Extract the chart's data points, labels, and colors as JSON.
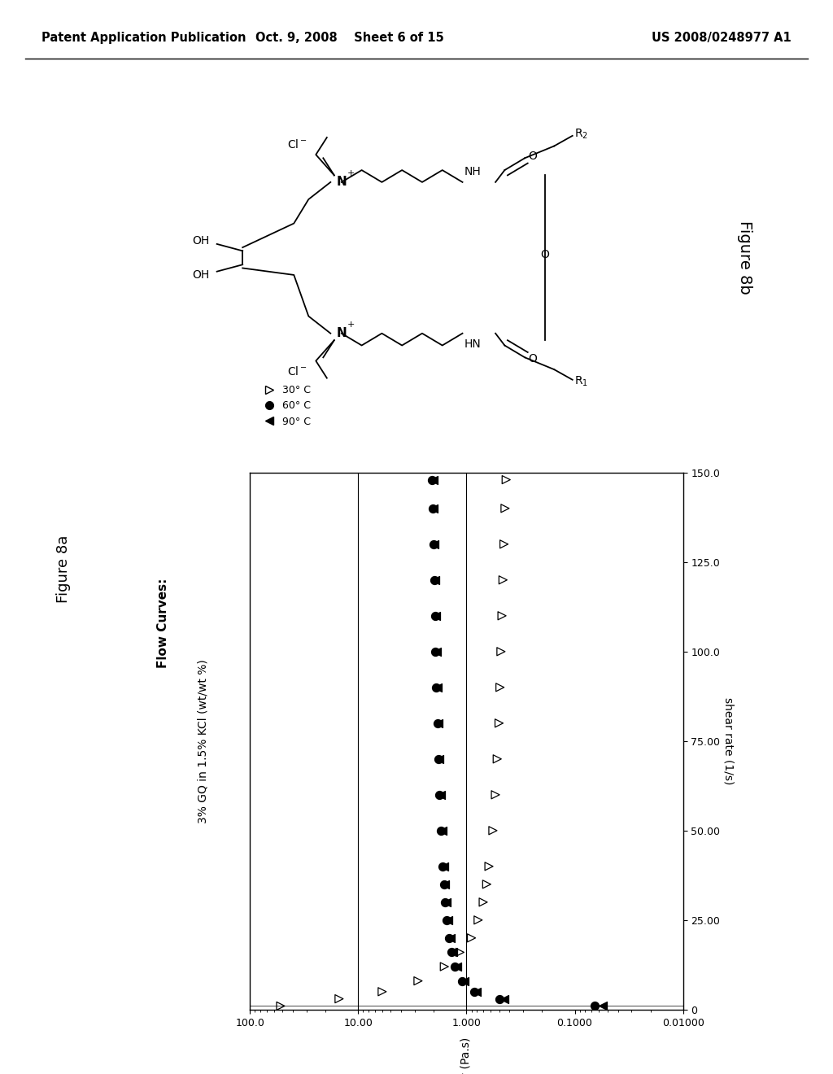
{
  "header_left": "Patent Application Publication",
  "header_center": "Oct. 9, 2008    Sheet 6 of 15",
  "header_right": "US 2008/0248977 A1",
  "figure_label_8b": "Figure 8b",
  "figure_label_8a": "Figure 8a",
  "plot_title_line1": "Flow Curves:",
  "plot_title_line2": "3% GQ in 1.5% KCl (wt/wt %)",
  "x_axis_label": "viscosity (Pa.s)",
  "y_axis_label": "shear rate (1/s)",
  "x_ticks": [
    100.0,
    10.0,
    1.0,
    0.1,
    0.01
  ],
  "x_tick_labels": [
    "100.0",
    "10.00",
    "1.000",
    "0.1000",
    "0.01000"
  ],
  "y_ticks": [
    0,
    25.0,
    50.0,
    75.0,
    100.0,
    125.0,
    150.0
  ],
  "y_tick_labels": [
    "0",
    "25.00",
    "50.00",
    "75.00",
    "100.0",
    "125.0",
    "150.0"
  ],
  "legend_labels": [
    "30° C",
    "60° C",
    "90° C"
  ],
  "shear_30": [
    1.0,
    3.0,
    5.0,
    8.0,
    12.0,
    16.0,
    20.0,
    25.0,
    30.0,
    35.0,
    40.0,
    50.0,
    60.0,
    70.0,
    80.0,
    90.0,
    100.0,
    110.0,
    120.0,
    130.0,
    140.0,
    148.0
  ],
  "visc_30": [
    52.0,
    15.0,
    6.0,
    2.8,
    1.6,
    1.15,
    0.9,
    0.78,
    0.7,
    0.65,
    0.62,
    0.57,
    0.54,
    0.52,
    0.5,
    0.49,
    0.48,
    0.47,
    0.46,
    0.45,
    0.44,
    0.43
  ],
  "shear_60": [
    1.0,
    3.0,
    5.0,
    8.0,
    12.0,
    16.0,
    20.0,
    25.0,
    30.0,
    35.0,
    40.0,
    50.0,
    60.0,
    70.0,
    80.0,
    90.0,
    100.0,
    110.0,
    120.0,
    130.0,
    140.0,
    148.0
  ],
  "visc_60": [
    0.065,
    0.5,
    0.85,
    1.1,
    1.28,
    1.38,
    1.45,
    1.52,
    1.58,
    1.62,
    1.66,
    1.72,
    1.77,
    1.82,
    1.86,
    1.9,
    1.93,
    1.96,
    1.99,
    2.02,
    2.05,
    2.07
  ],
  "shear_90": [
    1.0,
    3.0,
    5.0,
    8.0,
    12.0,
    16.0,
    20.0,
    25.0,
    30.0,
    35.0,
    40.0,
    50.0,
    60.0,
    70.0,
    80.0,
    90.0,
    100.0,
    110.0,
    120.0,
    130.0,
    140.0,
    148.0
  ],
  "visc_90": [
    0.055,
    0.45,
    0.8,
    1.05,
    1.22,
    1.32,
    1.4,
    1.47,
    1.52,
    1.57,
    1.61,
    1.67,
    1.72,
    1.77,
    1.81,
    1.85,
    1.88,
    1.91,
    1.94,
    1.97,
    2.0,
    2.02
  ],
  "background_color": "#ffffff"
}
